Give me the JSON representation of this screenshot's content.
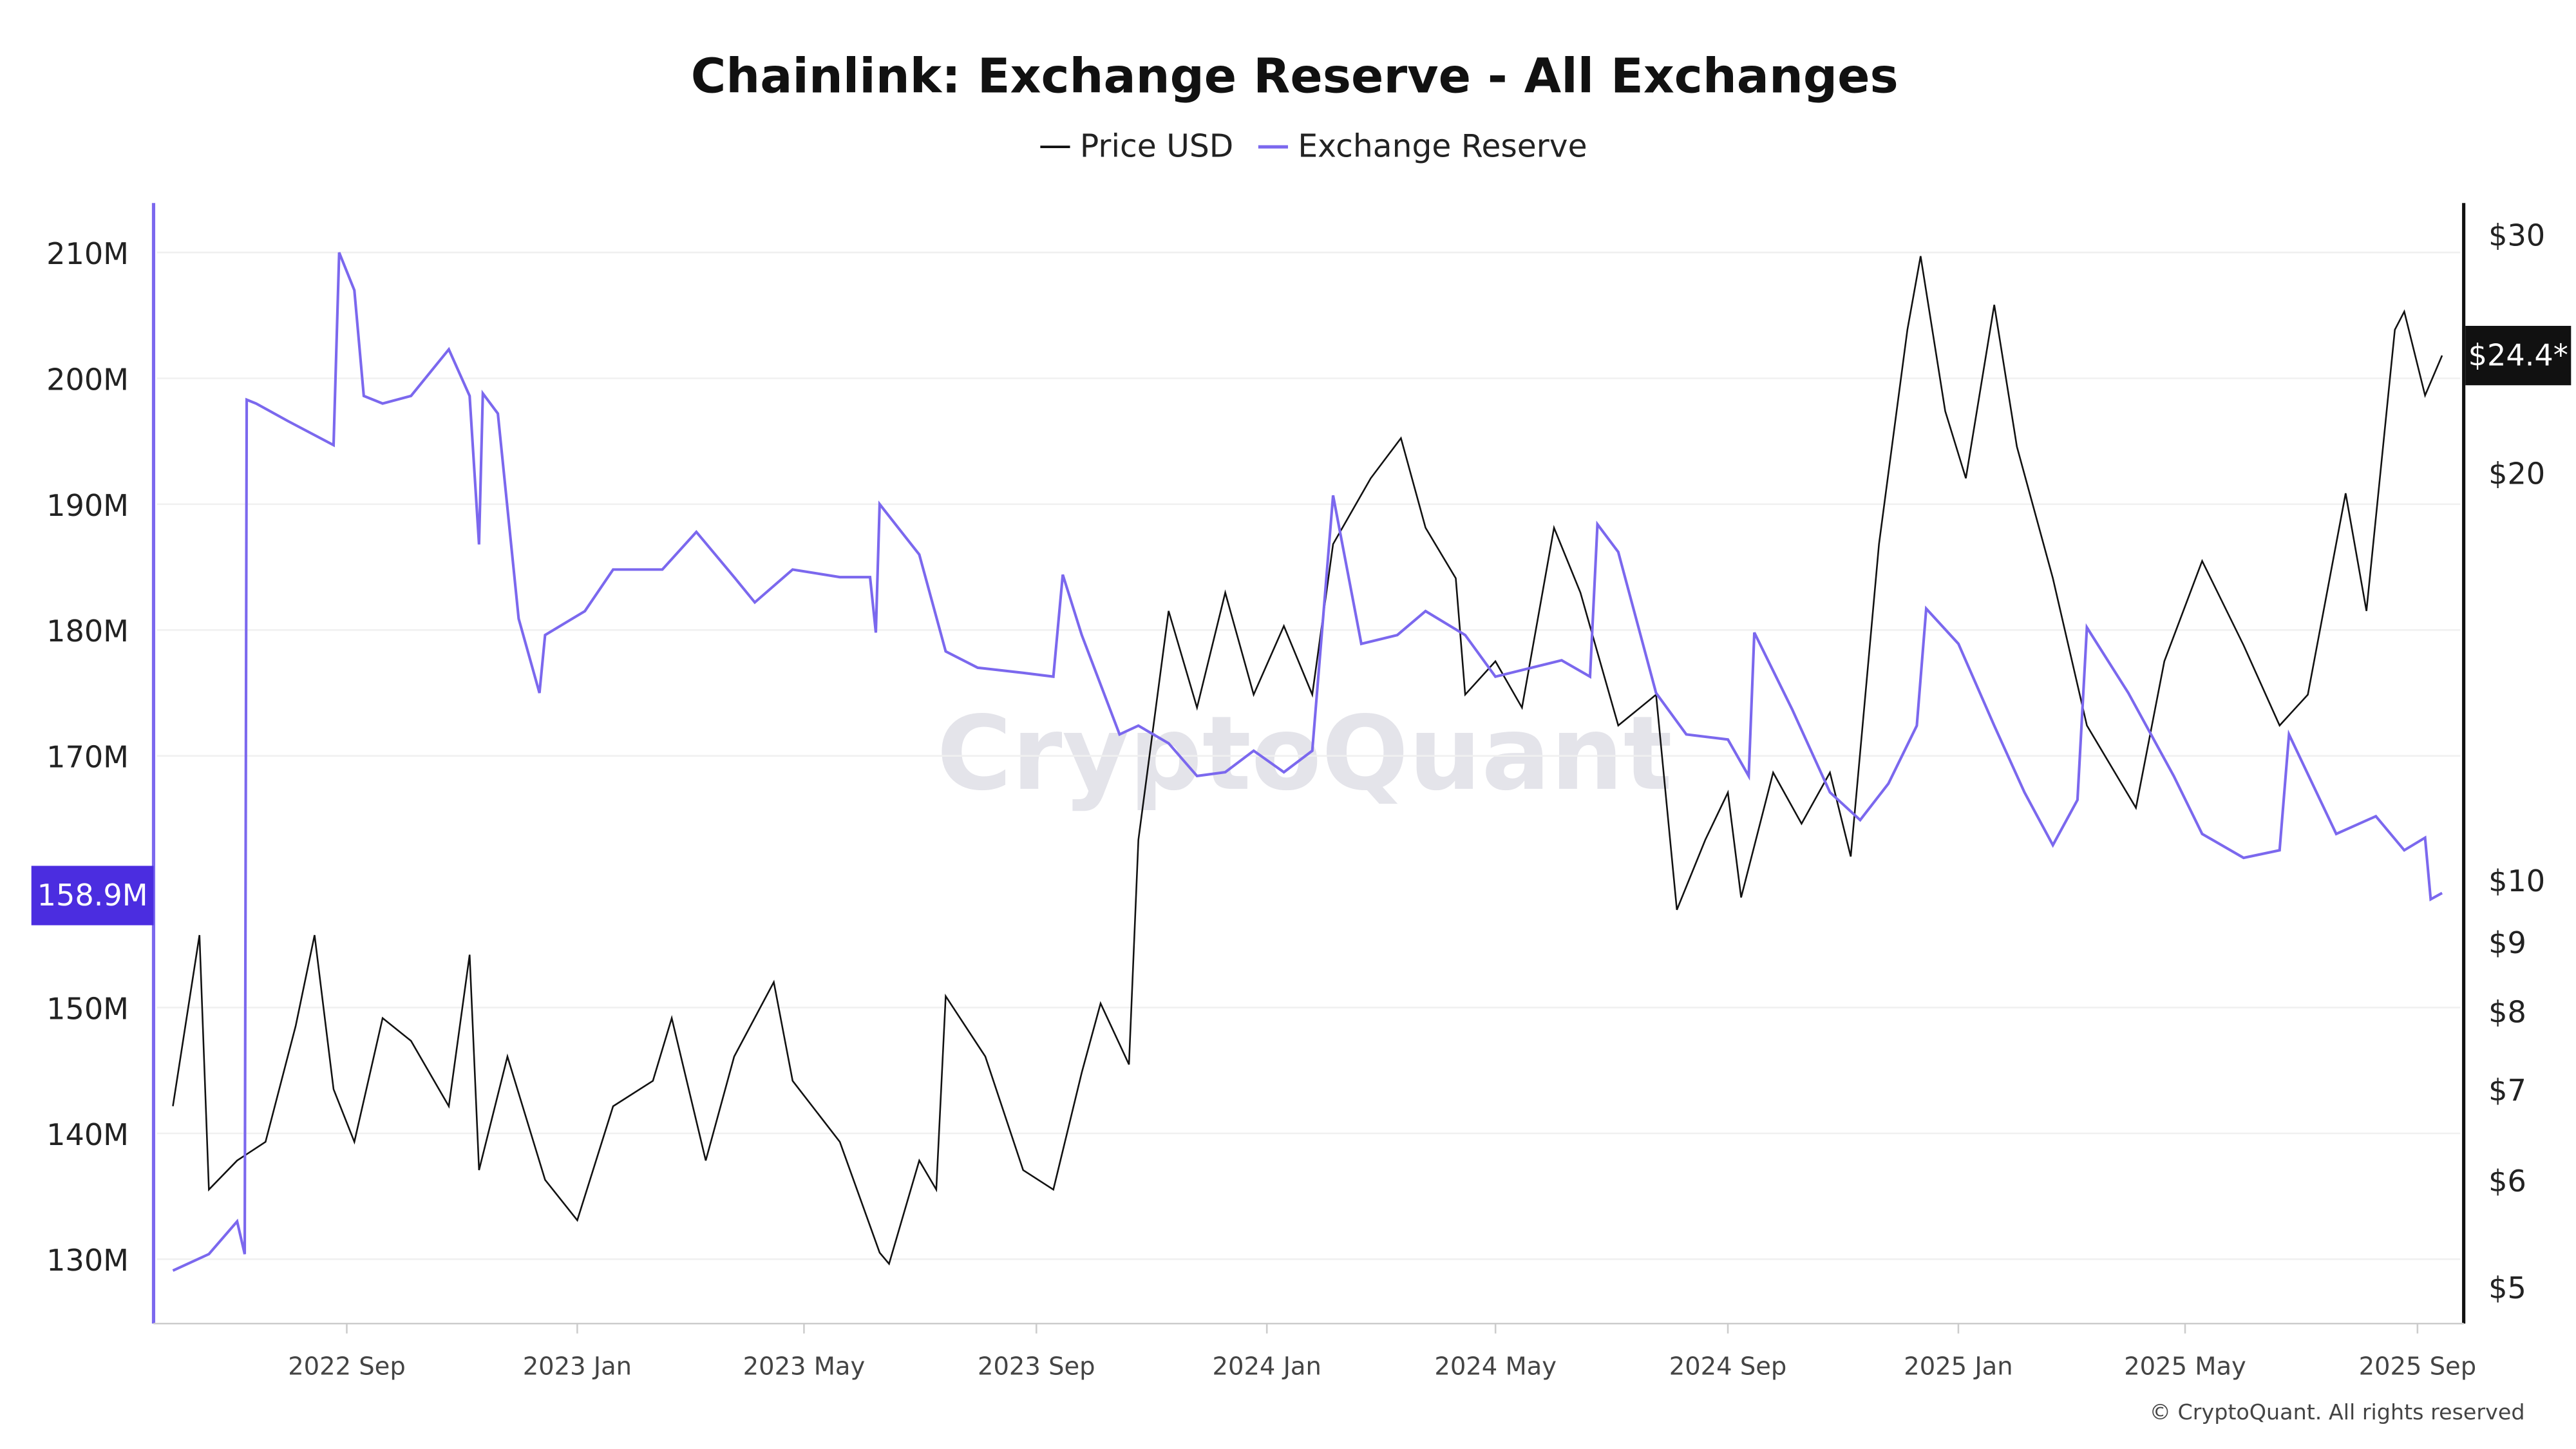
{
  "chart_data": {
    "type": "line",
    "title": "Chainlink: Exchange Reserve - All Exchanges",
    "watermark": "CryptoQuant",
    "copyright": "© CryptoQuant. All rights reserved",
    "legend_placement": "top-center",
    "grid": true,
    "x_ticks": [
      "2022 Sep",
      "2023 Jan",
      "2023 May",
      "2023 Sep",
      "2024 Jan",
      "2024 May",
      "2024 Sep",
      "2025 Jan",
      "2025 May",
      "2025 Sep"
    ],
    "y_left": {
      "ticks": [
        "210M",
        "200M",
        "190M",
        "180M",
        "170M",
        "150M",
        "140M",
        "130M"
      ],
      "tick_values": [
        210,
        200,
        190,
        180,
        170,
        150,
        140,
        130
      ],
      "current_label": "158.9M",
      "current_value": 158.9,
      "label_color": "#4b2de0"
    },
    "y_right": {
      "scale": "log",
      "ticks": [
        "$30",
        "$20",
        "$10",
        "$9",
        "$8",
        "$7",
        "$6",
        "$5"
      ],
      "tick_values": [
        30,
        20,
        10,
        9,
        8,
        7,
        6,
        5
      ],
      "current_label": "$24.4*",
      "current_value": 24.4
    },
    "series": [
      {
        "name": "Price USD",
        "color": "#111111",
        "axis": "right",
        "points": [
          [
            "2022-06-01",
            6.8
          ],
          [
            "2022-06-15",
            9.1
          ],
          [
            "2022-06-20",
            5.9
          ],
          [
            "2022-07-05",
            6.2
          ],
          [
            "2022-07-20",
            6.4
          ],
          [
            "2022-08-05",
            7.8
          ],
          [
            "2022-08-15",
            9.1
          ],
          [
            "2022-08-25",
            7.0
          ],
          [
            "2022-09-05",
            6.4
          ],
          [
            "2022-09-20",
            7.9
          ],
          [
            "2022-10-05",
            7.6
          ],
          [
            "2022-10-25",
            6.8
          ],
          [
            "2022-11-05",
            8.8
          ],
          [
            "2022-11-10",
            6.1
          ],
          [
            "2022-11-25",
            7.4
          ],
          [
            "2022-12-15",
            6.0
          ],
          [
            "2023-01-01",
            5.6
          ],
          [
            "2023-01-20",
            6.8
          ],
          [
            "2023-02-10",
            7.1
          ],
          [
            "2023-02-20",
            7.9
          ],
          [
            "2023-03-10",
            6.2
          ],
          [
            "2023-03-25",
            7.4
          ],
          [
            "2023-04-15",
            8.4
          ],
          [
            "2023-04-25",
            7.1
          ],
          [
            "2023-05-20",
            6.4
          ],
          [
            "2023-06-10",
            5.3
          ],
          [
            "2023-06-15",
            5.2
          ],
          [
            "2023-07-01",
            6.2
          ],
          [
            "2023-07-10",
            5.9
          ],
          [
            "2023-07-15",
            8.2
          ],
          [
            "2023-08-05",
            7.4
          ],
          [
            "2023-08-25",
            6.1
          ],
          [
            "2023-09-10",
            5.9
          ],
          [
            "2023-09-25",
            7.2
          ],
          [
            "2023-10-05",
            8.1
          ],
          [
            "2023-10-20",
            7.3
          ],
          [
            "2023-10-25",
            10.7
          ],
          [
            "2023-11-10",
            15.8
          ],
          [
            "2023-11-25",
            13.4
          ],
          [
            "2023-12-10",
            16.3
          ],
          [
            "2023-12-25",
            13.7
          ],
          [
            "2024-01-10",
            15.4
          ],
          [
            "2024-01-25",
            13.7
          ],
          [
            "2024-02-05",
            17.7
          ],
          [
            "2024-02-25",
            19.8
          ],
          [
            "2024-03-12",
            21.2
          ],
          [
            "2024-03-25",
            18.2
          ],
          [
            "2024-04-10",
            16.7
          ],
          [
            "2024-04-15",
            13.7
          ],
          [
            "2024-05-01",
            14.5
          ],
          [
            "2024-05-15",
            13.4
          ],
          [
            "2024-06-01",
            18.2
          ],
          [
            "2024-06-15",
            16.3
          ],
          [
            "2024-07-05",
            13.0
          ],
          [
            "2024-07-25",
            13.7
          ],
          [
            "2024-08-05",
            9.5
          ],
          [
            "2024-08-20",
            10.7
          ],
          [
            "2024-09-01",
            11.6
          ],
          [
            "2024-09-08",
            9.7
          ],
          [
            "2024-09-25",
            12.0
          ],
          [
            "2024-10-10",
            11.0
          ],
          [
            "2024-10-25",
            12.0
          ],
          [
            "2024-11-05",
            10.4
          ],
          [
            "2024-11-20",
            17.7
          ],
          [
            "2024-12-05",
            25.5
          ],
          [
            "2024-12-12",
            28.9
          ],
          [
            "2024-12-25",
            22.2
          ],
          [
            "2025-01-05",
            19.8
          ],
          [
            "2025-01-20",
            26.6
          ],
          [
            "2025-02-01",
            20.9
          ],
          [
            "2025-02-20",
            16.7
          ],
          [
            "2025-03-10",
            13.0
          ],
          [
            "2025-04-05",
            11.3
          ],
          [
            "2025-04-20",
            14.5
          ],
          [
            "2025-05-10",
            17.2
          ],
          [
            "2025-06-01",
            14.9
          ],
          [
            "2025-06-20",
            13.0
          ],
          [
            "2025-07-05",
            13.7
          ],
          [
            "2025-07-25",
            19.3
          ],
          [
            "2025-08-05",
            15.8
          ],
          [
            "2025-08-20",
            25.5
          ],
          [
            "2025-08-25",
            26.3
          ],
          [
            "2025-09-05",
            22.8
          ],
          [
            "2025-09-14",
            24.4
          ]
        ]
      },
      {
        "name": "Exchange Reserve",
        "color": "#7b68ee",
        "axis": "left",
        "points": [
          [
            "2022-06-01",
            129.1
          ],
          [
            "2022-06-20",
            130.4
          ],
          [
            "2022-07-05",
            133
          ],
          [
            "2022-07-09",
            130.4
          ],
          [
            "2022-07-10",
            198.3
          ],
          [
            "2022-07-15",
            198
          ],
          [
            "2022-08-01",
            196.6
          ],
          [
            "2022-08-25",
            194.7
          ],
          [
            "2022-08-28",
            210
          ],
          [
            "2022-09-05",
            207
          ],
          [
            "2022-09-10",
            198.6
          ],
          [
            "2022-09-20",
            198
          ],
          [
            "2022-10-05",
            198.6
          ],
          [
            "2022-10-25",
            202.3
          ],
          [
            "2022-11-05",
            198.6
          ],
          [
            "2022-11-10",
            186.8
          ],
          [
            "2022-11-12",
            198.8
          ],
          [
            "2022-11-20",
            197.2
          ],
          [
            "2022-12-01",
            180.9
          ],
          [
            "2022-12-12",
            175
          ],
          [
            "2022-12-15",
            179.6
          ],
          [
            "2023-01-05",
            181.5
          ],
          [
            "2023-01-20",
            184.8
          ],
          [
            "2023-02-15",
            184.8
          ],
          [
            "2023-03-05",
            187.8
          ],
          [
            "2023-03-25",
            184.2
          ],
          [
            "2023-04-05",
            182.2
          ],
          [
            "2023-04-25",
            184.8
          ],
          [
            "2023-05-20",
            184.2
          ],
          [
            "2023-06-05",
            184.2
          ],
          [
            "2023-06-08",
            179.8
          ],
          [
            "2023-06-10",
            190
          ],
          [
            "2023-07-01",
            186
          ],
          [
            "2023-07-15",
            178.3
          ],
          [
            "2023-08-01",
            177
          ],
          [
            "2023-08-25",
            176.6
          ],
          [
            "2023-09-10",
            176.3
          ],
          [
            "2023-09-15",
            184.4
          ],
          [
            "2023-09-25",
            179.6
          ],
          [
            "2023-10-15",
            171.7
          ],
          [
            "2023-10-25",
            172.4
          ],
          [
            "2023-11-10",
            171
          ],
          [
            "2023-11-25",
            168.4
          ],
          [
            "2023-12-10",
            168.7
          ],
          [
            "2023-12-25",
            170.4
          ],
          [
            "2024-01-10",
            168.7
          ],
          [
            "2024-01-25",
            170.4
          ],
          [
            "2024-02-05",
            190.7
          ],
          [
            "2024-02-20",
            178.9
          ],
          [
            "2024-03-10",
            179.6
          ],
          [
            "2024-03-25",
            181.5
          ],
          [
            "2024-04-15",
            179.6
          ],
          [
            "2024-05-01",
            176.3
          ],
          [
            "2024-05-20",
            177
          ],
          [
            "2024-06-05",
            177.6
          ],
          [
            "2024-06-20",
            176.3
          ],
          [
            "2024-06-24",
            188.4
          ],
          [
            "2024-07-05",
            186.2
          ],
          [
            "2024-07-25",
            175
          ],
          [
            "2024-08-10",
            171.7
          ],
          [
            "2024-09-01",
            171.3
          ],
          [
            "2024-09-12",
            168.4
          ],
          [
            "2024-09-15",
            179.8
          ],
          [
            "2024-10-05",
            173.7
          ],
          [
            "2024-10-25",
            167.1
          ],
          [
            "2024-11-10",
            164.9
          ],
          [
            "2024-11-25",
            167.8
          ],
          [
            "2024-12-10",
            172.4
          ],
          [
            "2024-12-15",
            181.7
          ],
          [
            "2025-01-01",
            178.9
          ],
          [
            "2025-01-20",
            172.4
          ],
          [
            "2025-02-05",
            167.1
          ],
          [
            "2025-02-20",
            162.9
          ],
          [
            "2025-03-05",
            166.5
          ],
          [
            "2025-03-10",
            180.2
          ],
          [
            "2025-04-01",
            175
          ],
          [
            "2025-04-25",
            168.4
          ],
          [
            "2025-05-10",
            163.8
          ],
          [
            "2025-06-01",
            161.9
          ],
          [
            "2025-06-20",
            162.5
          ],
          [
            "2025-06-25",
            171.7
          ],
          [
            "2025-07-20",
            163.8
          ],
          [
            "2025-08-10",
            165.2
          ],
          [
            "2025-08-25",
            162.5
          ],
          [
            "2025-09-05",
            163.5
          ],
          [
            "2025-09-08",
            158.6
          ],
          [
            "2025-09-14",
            159.1
          ]
        ]
      }
    ]
  }
}
